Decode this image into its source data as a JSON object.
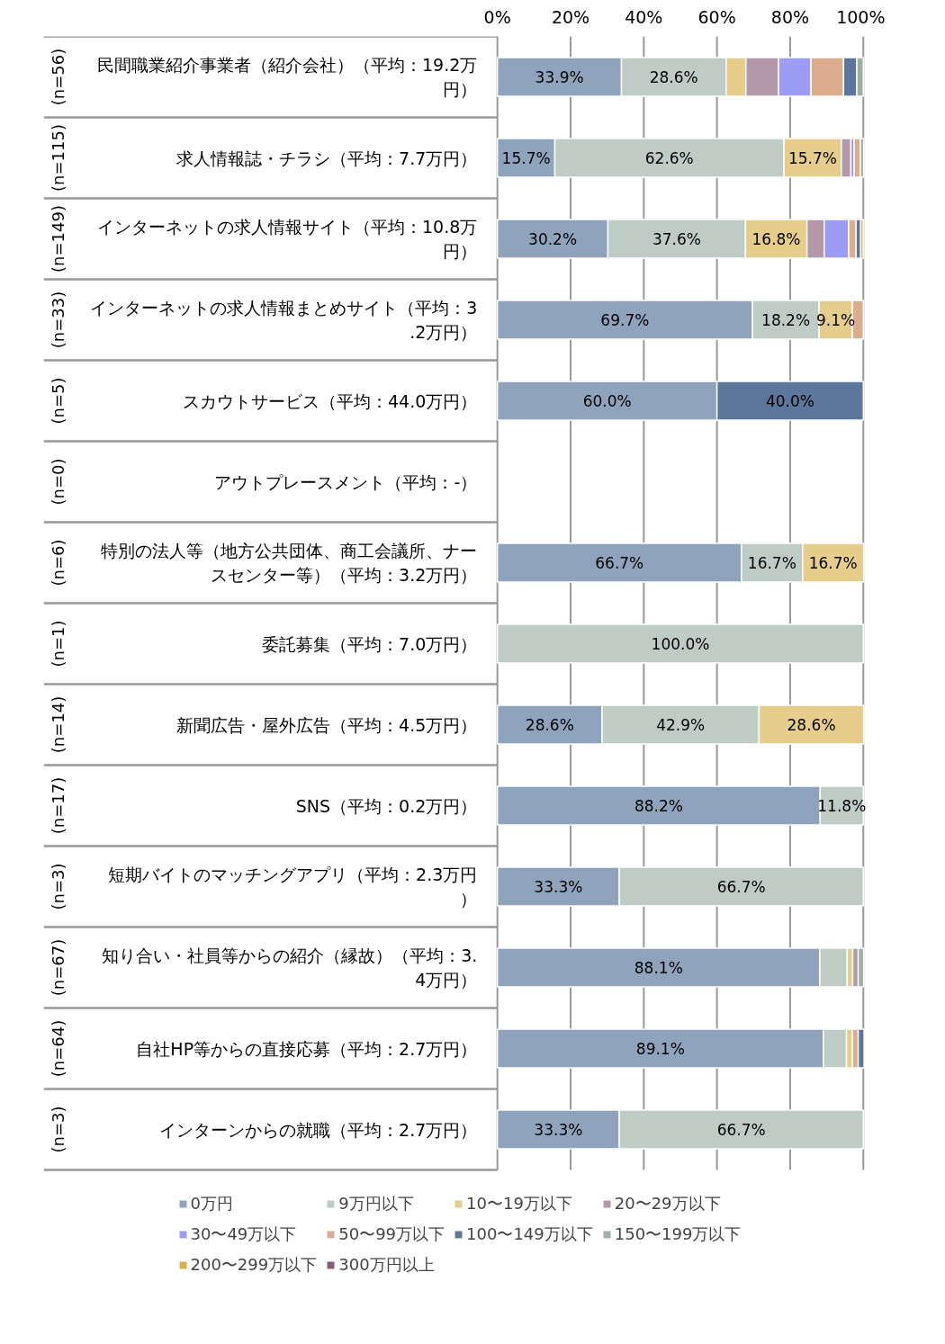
{
  "chart_data": {
    "type": "bar",
    "orientation": "horizontal",
    "stacked": true,
    "categories": [
      "民間職業紹介事業者（紹介会社）（平均：19.2万円）",
      "求人情報誌・チラシ（平均：7.7万円）",
      "インターネットの求人情報サイト（平均：10.8万円）",
      "インターネットの求人情報まとめサイト（平均：3.2万円）",
      "スカウトサービス（平均：44.0万円）",
      "アウトプレースメント（平均：-）",
      "特別の法人等（地方公共団体、商工会議所、ナースセンター等）（平均：3.2万円）",
      "委託募集（平均：7.0万円）",
      "新聞広告・屋外広告（平均：4.5万円）",
      "SNS（平均：0.2万円）",
      "短期バイトのマッチングアプリ（平均：2.3万円）",
      "知り合い・社員等からの紹介（縁故）（平均：3.4万円）",
      "自社HP等からの直接応募（平均：2.7万円）",
      "インターンからの就職（平均：2.7万円）"
    ],
    "series": [
      {
        "name": "0万円",
        "color": "#8fa3bd",
        "values": [
          33.9,
          15.7,
          30.2,
          69.7,
          60.0,
          null,
          66.7,
          null,
          28.6,
          88.2,
          33.3,
          88.1,
          89.1,
          33.3
        ],
        "value_labels": [
          "33.9%",
          "15.7%",
          "30.2%",
          "69.7%",
          "60.0%",
          null,
          "66.7%",
          null,
          "28.6%",
          "88.2%",
          "33.3%",
          "88.1%",
          "89.1%",
          "33.3%"
        ]
      },
      {
        "name": "9万円以下",
        "color": "#bfccc6",
        "values": [
          28.6,
          62.6,
          37.6,
          18.2,
          null,
          null,
          16.7,
          100.0,
          42.9,
          11.8,
          66.7,
          7.5,
          6.3,
          66.7
        ],
        "value_labels": [
          "28.6%",
          "62.6%",
          "37.6%",
          "18.2%",
          null,
          null,
          "16.7%",
          "100.0%",
          "42.9%",
          "11.8%",
          "66.7%",
          null,
          null,
          "66.7%"
        ]
      },
      {
        "name": "10〜19万以下",
        "color": "#e6cd8c",
        "values": [
          5.4,
          15.7,
          16.8,
          9.1,
          null,
          null,
          16.7,
          null,
          28.6,
          null,
          null,
          1.5,
          1.6,
          null
        ],
        "value_labels": [
          null,
          "15.7%",
          "16.8%",
          "9.1%",
          null,
          null,
          "16.7%",
          null,
          "28.6%",
          null,
          null,
          null,
          null,
          null
        ]
      },
      {
        "name": "20〜29万以下",
        "color": "#b497a8",
        "values": [
          8.9,
          2.6,
          4.7,
          null,
          null,
          null,
          null,
          null,
          null,
          null,
          null,
          1.5,
          null,
          null
        ]
      },
      {
        "name": "30〜49万以下",
        "color": "#9c9cf5",
        "values": [
          8.9,
          0.9,
          6.7,
          null,
          null,
          null,
          null,
          null,
          null,
          null,
          null,
          null,
          null,
          null
        ]
      },
      {
        "name": "50〜99万以下",
        "color": "#dcac8e",
        "values": [
          8.9,
          1.7,
          2.0,
          3.0,
          null,
          null,
          null,
          null,
          null,
          null,
          null,
          null,
          1.6,
          null
        ]
      },
      {
        "name": "100〜149万以下",
        "color": "#5d769c",
        "values": [
          3.6,
          null,
          1.3,
          null,
          40.0,
          null,
          null,
          null,
          null,
          null,
          null,
          null,
          1.6,
          null
        ],
        "value_labels": [
          null,
          null,
          null,
          null,
          "40.0%",
          null,
          null,
          null,
          null,
          null,
          null,
          null,
          null,
          null
        ]
      },
      {
        "name": "150〜199万以下",
        "color": "#9cb0a5",
        "values": [
          1.8,
          0.9,
          null,
          null,
          null,
          null,
          null,
          null,
          null,
          null,
          null,
          1.5,
          null,
          null
        ]
      },
      {
        "name": "200〜299万以下",
        "color": "#d4b04e",
        "values": [
          null,
          null,
          0.7,
          null,
          null,
          null,
          null,
          null,
          null,
          null,
          null,
          null,
          null,
          null
        ]
      },
      {
        "name": "300万円以上",
        "color": "#8b5a76",
        "values": [
          null,
          null,
          null,
          null,
          null,
          null,
          null,
          null,
          null,
          null,
          null,
          null,
          null,
          null
        ]
      }
    ],
    "xlim": [
      0,
      100
    ],
    "xticks": [
      {
        "value": 0,
        "label": "0%"
      },
      {
        "value": 20,
        "label": "20%"
      },
      {
        "value": 40,
        "label": "40%"
      },
      {
        "value": 60,
        "label": "60%"
      },
      {
        "value": 80,
        "label": "80%"
      },
      {
        "value": 100,
        "label": "100%"
      }
    ],
    "annotations": [
      "(n=56)",
      "(n=115)",
      "(n=149)",
      "(n=33)",
      "(n=5)",
      "(n=0)",
      "(n=6)",
      "(n=1)",
      "(n=14)",
      "(n=17)",
      "(n=3)",
      "(n=67)",
      "(n=64)",
      "(n=3)"
    ],
    "grid": "x",
    "legend": "bottom"
  }
}
